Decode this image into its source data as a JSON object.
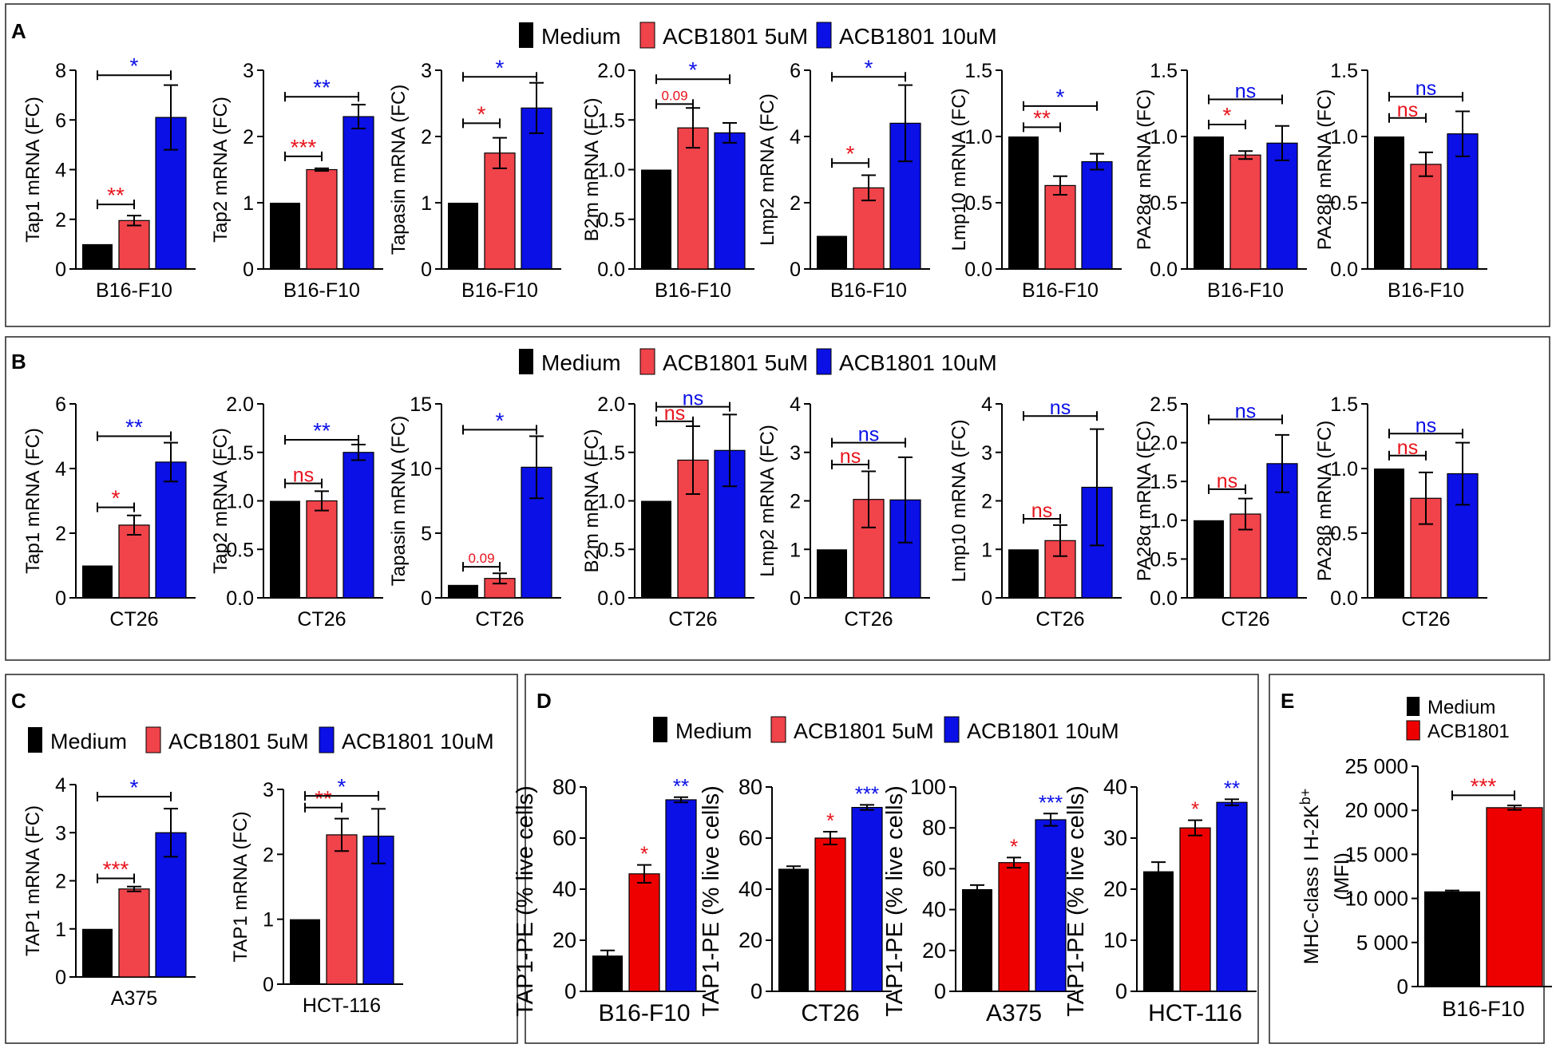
{
  "panels": [
    {
      "id": "A",
      "label": "A",
      "legend": [
        "Medium",
        "ACB1801 5uM",
        "ACB1801 10uM"
      ]
    },
    {
      "id": "B",
      "label": "B",
      "legend": [
        "Medium",
        "ACB1801 5uM",
        "ACB1801 10uM"
      ]
    },
    {
      "id": "C",
      "label": "C",
      "legend": [
        "Medium",
        "ACB1801 5uM",
        "ACB1801 10uM"
      ]
    },
    {
      "id": "D",
      "label": "D",
      "legend": [
        "Medium",
        "ACB1801 5uM",
        "ACB1801 10uM"
      ]
    },
    {
      "id": "E",
      "label": "E",
      "legend": [
        "Medium",
        "ACB1801"
      ]
    }
  ],
  "colors": {
    "medium": "#000000",
    "low": "#f0434a",
    "high": "#0a10e6",
    "red_bar_e": "#ee0000",
    "sig_red": "#e8141c",
    "sig_blue": "#0a10e6"
  },
  "chart_data": [
    {
      "panel": "A",
      "type": "bar",
      "ylabel": "Tap1 mRNA (FC)",
      "xlabel": "B16-F10",
      "ylim": [
        0,
        8
      ],
      "yticks": [
        "0",
        "2",
        "4",
        "6",
        "8"
      ],
      "values": [
        1,
        1.95,
        6.1
      ],
      "errors": [
        0,
        0.2,
        1.3
      ],
      "sig": [
        {
          "text": "**",
          "from": 0,
          "to": 1,
          "y": 2.6,
          "color": "red"
        },
        {
          "text": "*",
          "from": 0,
          "to": 2,
          "y": 7.8,
          "color": "blue"
        }
      ]
    },
    {
      "panel": "A",
      "type": "bar",
      "ylabel": "Tap2 mRNA (FC)",
      "xlabel": "B16-F10",
      "ylim": [
        0,
        3
      ],
      "yticks": [
        "0",
        "1",
        "2",
        "3"
      ],
      "values": [
        1,
        1.5,
        2.3
      ],
      "errors": [
        0,
        0.02,
        0.18
      ],
      "sig": [
        {
          "text": "***",
          "from": 0,
          "to": 1,
          "y": 1.7,
          "color": "red"
        },
        {
          "text": "**",
          "from": 0,
          "to": 2,
          "y": 2.6,
          "color": "blue"
        }
      ]
    },
    {
      "panel": "A",
      "type": "bar",
      "ylabel": "Tapasin mRNA (FC)",
      "xlabel": "B16-F10",
      "ylim": [
        0,
        3
      ],
      "yticks": [
        "0",
        "1",
        "2",
        "3"
      ],
      "values": [
        1,
        1.75,
        2.43
      ],
      "errors": [
        0,
        0.23,
        0.38
      ],
      "sig": [
        {
          "text": "*",
          "from": 0,
          "to": 1,
          "y": 2.2,
          "color": "red"
        },
        {
          "text": "*",
          "from": 0,
          "to": 2,
          "y": 2.9,
          "color": "blue"
        }
      ]
    },
    {
      "panel": "A",
      "type": "bar",
      "ylabel": "B2m mRNA (FC)",
      "xlabel": "B16-F10",
      "ylim": [
        0,
        2
      ],
      "yticks": [
        "0.0",
        "0.5",
        "1.0",
        "1.5",
        "2.0"
      ],
      "values": [
        1,
        1.42,
        1.37
      ],
      "errors": [
        0,
        0.2,
        0.1
      ],
      "sig": [
        {
          "text": "0.09",
          "from": 0,
          "to": 1,
          "y": 1.66,
          "color": "red"
        },
        {
          "text": "*",
          "from": 0,
          "to": 2,
          "y": 1.91,
          "color": "blue"
        }
      ]
    },
    {
      "panel": "A",
      "type": "bar",
      "ylabel": "Lmp2 mRNA (FC)",
      "xlabel": "B16-F10",
      "ylim": [
        0,
        6
      ],
      "yticks": [
        "0",
        "2",
        "4",
        "6"
      ],
      "values": [
        1,
        2.45,
        4.4
      ],
      "errors": [
        0,
        0.38,
        1.15
      ],
      "sig": [
        {
          "text": "*",
          "from": 0,
          "to": 1,
          "y": 3.2,
          "color": "red"
        },
        {
          "text": "*",
          "from": 0,
          "to": 2,
          "y": 5.8,
          "color": "blue"
        }
      ]
    },
    {
      "panel": "A",
      "type": "bar",
      "ylabel": "Lmp10 mRNA (FC)",
      "xlabel": "B16-F10",
      "ylim": [
        0,
        1.5
      ],
      "yticks": [
        "0.0",
        "0.5",
        "1.0",
        "1.5"
      ],
      "values": [
        1,
        0.63,
        0.81
      ],
      "errors": [
        0,
        0.07,
        0.06
      ],
      "sig": [
        {
          "text": "**",
          "from": 0,
          "to": 1,
          "y": 1.07,
          "color": "red"
        },
        {
          "text": "*",
          "from": 0,
          "to": 2,
          "y": 1.23,
          "color": "blue"
        }
      ]
    },
    {
      "panel": "A",
      "type": "bar",
      "ylabel": "PA28α mRNA (FC)",
      "xlabel": "B16-F10",
      "ylim": [
        0,
        1.5
      ],
      "yticks": [
        "0.0",
        "0.5",
        "1.0",
        "1.5"
      ],
      "values": [
        1,
        0.86,
        0.95
      ],
      "errors": [
        0,
        0.03,
        0.13
      ],
      "sig": [
        {
          "text": "*",
          "from": 0,
          "to": 1,
          "y": 1.09,
          "color": "red"
        },
        {
          "text": "ns",
          "from": 0,
          "to": 2,
          "y": 1.28,
          "color": "blue"
        }
      ]
    },
    {
      "panel": "A",
      "type": "bar",
      "ylabel": "PA28β mRNA (FC)",
      "xlabel": "B16-F10",
      "ylim": [
        0,
        1.5
      ],
      "yticks": [
        "0.0",
        "0.5",
        "1.0",
        "1.5"
      ],
      "values": [
        1,
        0.79,
        1.02
      ],
      "errors": [
        0,
        0.09,
        0.17
      ],
      "sig": [
        {
          "text": "ns",
          "from": 0,
          "to": 1,
          "y": 1.14,
          "color": "red"
        },
        {
          "text": "ns",
          "from": 0,
          "to": 2,
          "y": 1.3,
          "color": "blue"
        }
      ]
    },
    {
      "panel": "B",
      "type": "bar",
      "ylabel": "Tap1 mRNA (FC)",
      "xlabel": "CT26",
      "ylim": [
        0,
        6
      ],
      "yticks": [
        "0",
        "2",
        "4",
        "6"
      ],
      "values": [
        1,
        2.25,
        4.2
      ],
      "errors": [
        0,
        0.3,
        0.6
      ],
      "sig": [
        {
          "text": "*",
          "from": 0,
          "to": 1,
          "y": 2.8,
          "color": "red"
        },
        {
          "text": "**",
          "from": 0,
          "to": 2,
          "y": 5.0,
          "color": "blue"
        }
      ]
    },
    {
      "panel": "B",
      "type": "bar",
      "ylabel": "Tap2 mRNA (FC)",
      "xlabel": "CT26",
      "ylim": [
        0,
        2
      ],
      "yticks": [
        "0.0",
        "0.5",
        "1.0",
        "1.5",
        "2.0"
      ],
      "values": [
        1,
        1,
        1.5
      ],
      "errors": [
        0,
        0.1,
        0.08
      ],
      "sig": [
        {
          "text": "ns",
          "from": 0,
          "to": 1,
          "y": 1.18,
          "color": "red"
        },
        {
          "text": "**",
          "from": 0,
          "to": 2,
          "y": 1.63,
          "color": "blue"
        }
      ]
    },
    {
      "panel": "B",
      "type": "bar",
      "ylabel": "Tapasin mRNA (FC)",
      "xlabel": "CT26",
      "ylim": [
        0,
        15
      ],
      "yticks": [
        "0",
        "5",
        "10",
        "15"
      ],
      "values": [
        1,
        1.5,
        10.1
      ],
      "errors": [
        0,
        0.4,
        2.4
      ],
      "sig": [
        {
          "text": "0.09",
          "from": 0,
          "to": 1,
          "y": 2.4,
          "color": "red"
        },
        {
          "text": "*",
          "from": 0,
          "to": 2,
          "y": 13.0,
          "color": "blue"
        }
      ]
    },
    {
      "panel": "B",
      "type": "bar",
      "ylabel": "B2m mRNA (FC)",
      "xlabel": "CT26",
      "ylim": [
        0,
        2
      ],
      "yticks": [
        "0.0",
        "0.5",
        "1.0",
        "1.5",
        "2.0"
      ],
      "values": [
        1,
        1.42,
        1.52
      ],
      "errors": [
        0,
        0.35,
        0.37
      ],
      "sig": [
        {
          "text": "ns",
          "from": 0,
          "to": 1,
          "y": 1.82,
          "color": "red"
        },
        {
          "text": "ns",
          "from": 0,
          "to": 2,
          "y": 1.97,
          "color": "blue"
        }
      ]
    },
    {
      "panel": "B",
      "type": "bar",
      "ylabel": "Lmp2 mRNA (FC)",
      "xlabel": "CT26",
      "ylim": [
        0,
        4
      ],
      "yticks": [
        "0",
        "1",
        "2",
        "3",
        "4"
      ],
      "values": [
        1,
        2.03,
        2.02
      ],
      "errors": [
        0,
        0.58,
        0.88
      ],
      "sig": [
        {
          "text": "ns",
          "from": 0,
          "to": 1,
          "y": 2.75,
          "color": "red"
        },
        {
          "text": "ns",
          "from": 0,
          "to": 2,
          "y": 3.2,
          "color": "blue"
        }
      ]
    },
    {
      "panel": "B",
      "type": "bar",
      "ylabel": "Lmp10 mRNA (FC)",
      "xlabel": "CT26",
      "ylim": [
        0,
        4
      ],
      "yticks": [
        "0",
        "1",
        "2",
        "3",
        "4"
      ],
      "values": [
        1,
        1.18,
        2.28
      ],
      "errors": [
        0,
        0.32,
        1.2
      ],
      "sig": [
        {
          "text": "ns",
          "from": 0,
          "to": 1,
          "y": 1.63,
          "color": "red"
        },
        {
          "text": "ns",
          "from": 0,
          "to": 2,
          "y": 3.75,
          "color": "blue"
        }
      ]
    },
    {
      "panel": "B",
      "type": "bar",
      "ylabel": "PA28α mRNA (FC)",
      "xlabel": "CT26",
      "ylim": [
        0,
        2.5
      ],
      "yticks": [
        "0.0",
        "0.5",
        "1.0",
        "1.5",
        "2.0",
        "2.5"
      ],
      "values": [
        1,
        1.08,
        1.73
      ],
      "errors": [
        0,
        0.2,
        0.37
      ],
      "sig": [
        {
          "text": "ns",
          "from": 0,
          "to": 1,
          "y": 1.4,
          "color": "red"
        },
        {
          "text": "ns",
          "from": 0,
          "to": 2,
          "y": 2.3,
          "color": "blue"
        }
      ]
    },
    {
      "panel": "B",
      "type": "bar",
      "ylabel": "PA28β mRNA (FC)",
      "xlabel": "CT26",
      "ylim": [
        0,
        1.5
      ],
      "yticks": [
        "0.0",
        "0.5",
        "1.0",
        "1.5"
      ],
      "values": [
        1,
        0.77,
        0.96
      ],
      "errors": [
        0,
        0.2,
        0.24
      ],
      "sig": [
        {
          "text": "ns",
          "from": 0,
          "to": 1,
          "y": 1.1,
          "color": "red"
        },
        {
          "text": "ns",
          "from": 0,
          "to": 2,
          "y": 1.27,
          "color": "blue"
        }
      ]
    },
    {
      "panel": "C",
      "type": "bar",
      "ylabel": "TAP1 mRNA (FC)",
      "xlabel": "A375",
      "ylim": [
        0,
        4
      ],
      "yticks": [
        "0",
        "1",
        "2",
        "3",
        "4"
      ],
      "values": [
        1,
        1.83,
        3.0
      ],
      "errors": [
        0,
        0.05,
        0.5
      ],
      "sig": [
        {
          "text": "***",
          "from": 0,
          "to": 1,
          "y": 2.05,
          "color": "red"
        },
        {
          "text": "*",
          "from": 0,
          "to": 2,
          "y": 3.75,
          "color": "blue"
        }
      ]
    },
    {
      "panel": "C",
      "type": "bar",
      "ylabel": "TAP1 mRNA (FC)",
      "xlabel": "HCT-116",
      "ylim": [
        0,
        3
      ],
      "yticks": [
        "0",
        "1",
        "2",
        "3"
      ],
      "values": [
        1,
        2.3,
        2.28
      ],
      "errors": [
        0,
        0.25,
        0.42
      ],
      "sig": [
        {
          "text": "**",
          "from": 0,
          "to": 1,
          "y": 2.72,
          "color": "red"
        },
        {
          "text": "*",
          "from": 0,
          "to": 2,
          "y": 2.9,
          "color": "blue"
        }
      ]
    },
    {
      "panel": "D",
      "type": "bar",
      "ylabel": "TAP1-PE (% live cells)",
      "xlabel": "B16-F10",
      "ylim": [
        0,
        80
      ],
      "yticks": [
        "0",
        "20",
        "40",
        "60",
        "80"
      ],
      "values": [
        14,
        46,
        75
      ],
      "errors": [
        2,
        3.5,
        1
      ],
      "sig": [
        {
          "text": "*",
          "bar": 1,
          "color": "red"
        },
        {
          "text": "**",
          "bar": 2,
          "color": "blue"
        }
      ]
    },
    {
      "panel": "D",
      "type": "bar",
      "ylabel": "TAP1-PE (% live cells)",
      "xlabel": "CT26",
      "ylim": [
        0,
        80
      ],
      "yticks": [
        "0",
        "20",
        "40",
        "60",
        "80"
      ],
      "values": [
        48,
        60,
        72
      ],
      "errors": [
        1,
        2.5,
        1
      ],
      "sig": [
        {
          "text": "*",
          "bar": 1,
          "color": "red"
        },
        {
          "text": "***",
          "bar": 2,
          "color": "blue"
        }
      ]
    },
    {
      "panel": "D",
      "type": "bar",
      "ylabel": "TAP1-PE (% live cells)",
      "xlabel": "A375",
      "ylim": [
        0,
        100
      ],
      "yticks": [
        "0",
        "20",
        "40",
        "60",
        "80",
        "100"
      ],
      "values": [
        50,
        63,
        84
      ],
      "errors": [
        2,
        2.5,
        3
      ],
      "sig": [
        {
          "text": "*",
          "bar": 1,
          "color": "red"
        },
        {
          "text": "***",
          "bar": 2,
          "color": "blue"
        }
      ]
    },
    {
      "panel": "D",
      "type": "bar",
      "ylabel": "TAP1-PE (% live cells)",
      "xlabel": "HCT-116",
      "ylim": [
        0,
        40
      ],
      "yticks": [
        "0",
        "10",
        "20",
        "30",
        "40"
      ],
      "values": [
        23.5,
        32,
        37
      ],
      "errors": [
        1.8,
        1.5,
        0.6
      ],
      "sig": [
        {
          "text": "*",
          "bar": 1,
          "color": "red"
        },
        {
          "text": "**",
          "bar": 2,
          "color": "blue"
        }
      ]
    },
    {
      "panel": "E",
      "type": "bar",
      "ylabel": "MHC-class I H-2K",
      "ylabel_sup": "b+",
      "ylabel2": "(MFI)",
      "xlabel": "B16-F10",
      "ylim": [
        0,
        25000
      ],
      "yticks": [
        "0",
        "5 000",
        "10 000",
        "15 000",
        "20 000",
        "25 000"
      ],
      "values": [
        10800,
        20300
      ],
      "errors": [
        100,
        250
      ],
      "sig": [
        {
          "text": "***",
          "from": 0,
          "to": 1,
          "y": 21700,
          "color": "red"
        }
      ]
    }
  ]
}
